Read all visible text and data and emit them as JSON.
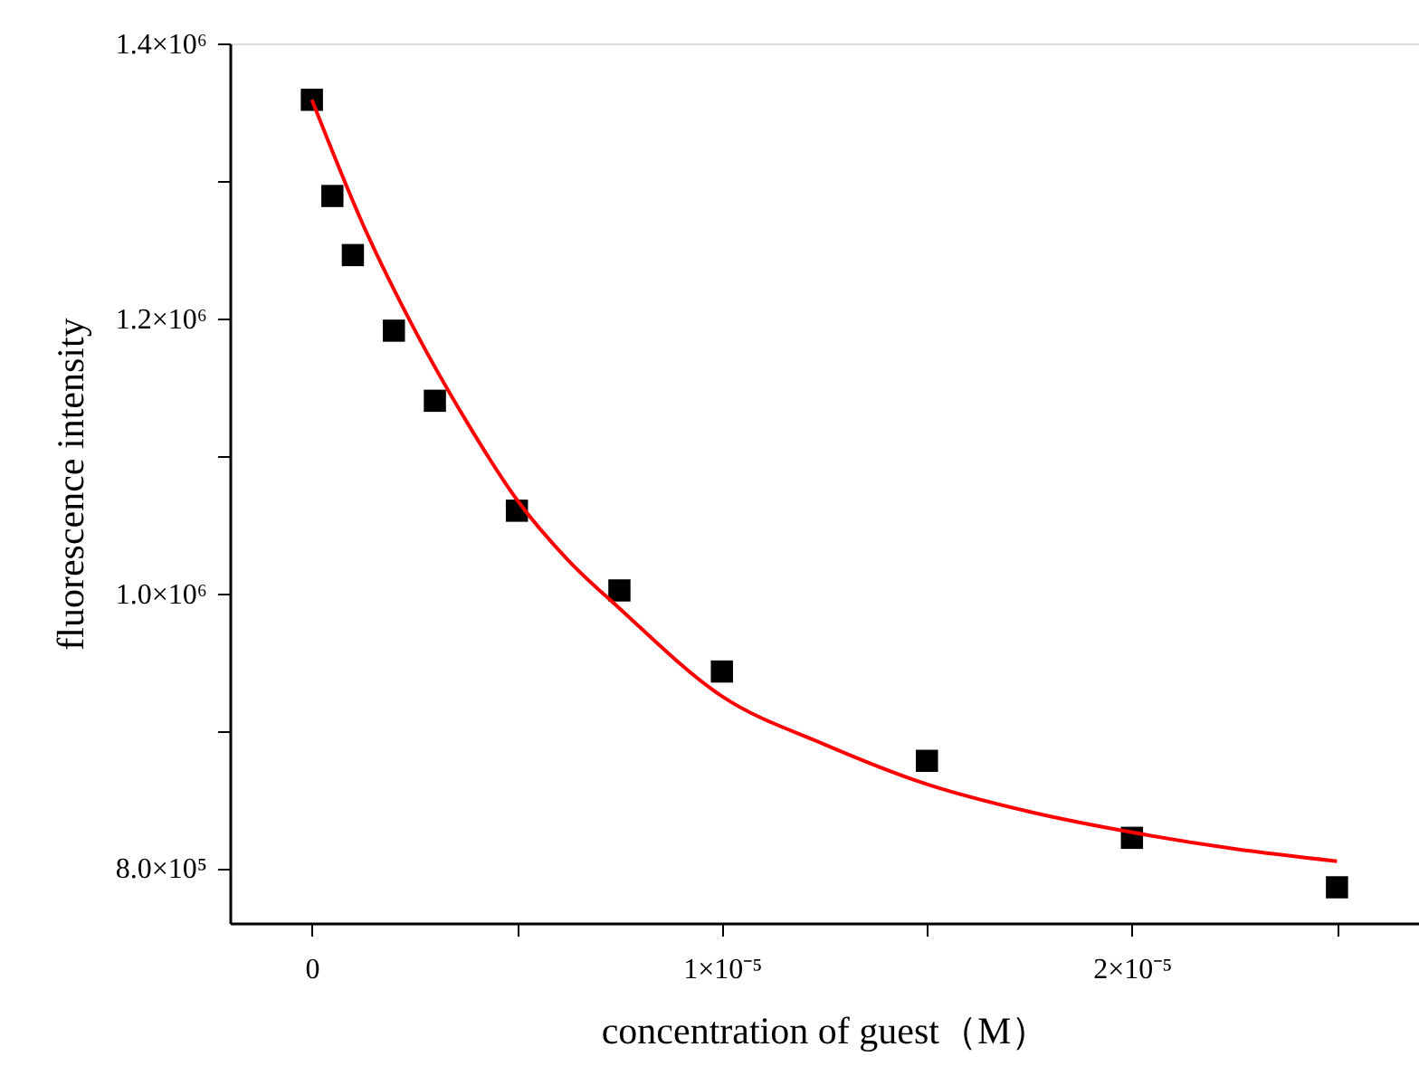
{
  "chart_data": {
    "type": "scatter",
    "xlabel": "concentration of guest（M）",
    "ylabel": "fluorescence intensity",
    "xlim": [
      -2e-06,
      2.7e-05
    ],
    "ylim": [
      760000,
      1400000
    ],
    "xticks": [
      {
        "value": 0,
        "label": "0"
      },
      {
        "value": 5e-06,
        "label": null
      },
      {
        "value": 1e-05,
        "label": "1×10⁻⁵"
      },
      {
        "value": 1.5e-05,
        "label": null
      },
      {
        "value": 2e-05,
        "label": "2×10⁻⁵"
      },
      {
        "value": 2.5e-05,
        "label": null
      }
    ],
    "yticks": [
      {
        "value": 800000,
        "label": "8.0×10⁵"
      },
      {
        "value": 900000,
        "label": null
      },
      {
        "value": 1000000,
        "label": "1.0×10⁶"
      },
      {
        "value": 1100000,
        "label": null
      },
      {
        "value": 1200000,
        "label": "1.2×10⁶"
      },
      {
        "value": 1300000,
        "label": null
      },
      {
        "value": 1400000,
        "label": "1.4×10⁶"
      }
    ],
    "grid": false,
    "series": [
      {
        "marker": "square",
        "color": "#000000",
        "x": [
          0,
          5e-07,
          1e-06,
          2e-06,
          3e-06,
          5e-06,
          7.5e-06,
          1e-05,
          1.5e-05,
          2e-05,
          2.5e-05
        ],
        "values": [
          1359000,
          1289000,
          1246000,
          1191000,
          1140000,
          1060000,
          1002000,
          943000,
          878000,
          822000,
          786000
        ]
      },
      {
        "type": "line",
        "marker": "none",
        "line_style": "solid",
        "color": "#ff0000",
        "x": [
          0,
          1.25e-06,
          2.5e-06,
          3.75e-06,
          5e-06,
          6.25e-06,
          7.5e-06,
          1e-05,
          1.25e-05,
          1.5e-05,
          1.75e-05,
          2e-05,
          2.25e-05,
          2.5e-05
        ],
        "values": [
          1359000,
          1268000,
          1192000,
          1126000,
          1068000,
          1024000,
          989000,
          925000,
          890000,
          861000,
          841000,
          826000,
          814000,
          805000
        ]
      }
    ]
  }
}
